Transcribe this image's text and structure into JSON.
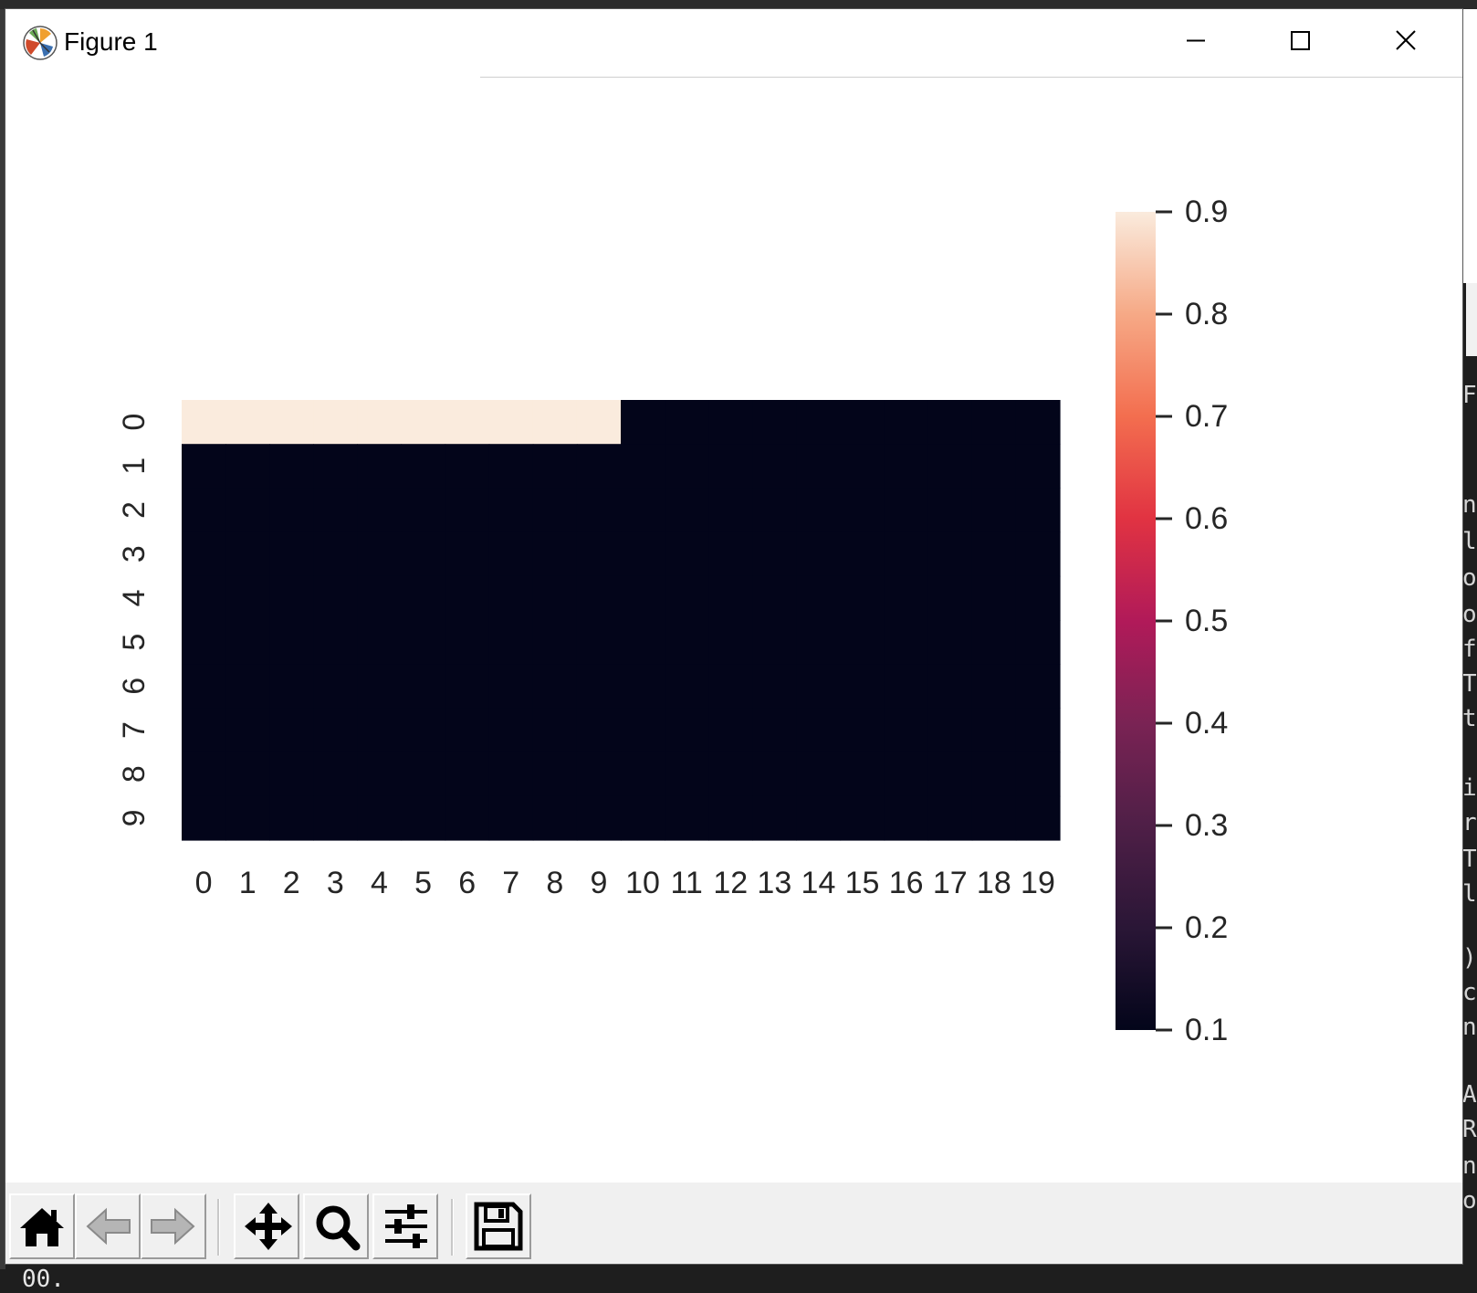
{
  "window": {
    "title": "Figure 1",
    "icon": "matplotlib-logo-icon",
    "controls": {
      "minimize_icon": "minimize-icon",
      "maximize_icon": "maximize-icon",
      "close_icon": "close-icon"
    }
  },
  "toolbar": {
    "buttons": [
      {
        "name": "home-button",
        "icon": "home-icon"
      },
      {
        "name": "back-button",
        "icon": "arrow-left-icon"
      },
      {
        "name": "forward-button",
        "icon": "arrow-right-icon"
      },
      {
        "name": "pan-button",
        "icon": "move-arrows-icon"
      },
      {
        "name": "zoom-button",
        "icon": "magnifier-icon"
      },
      {
        "name": "configure-subplots-button",
        "icon": "sliders-icon"
      },
      {
        "name": "save-button",
        "icon": "floppy-disk-icon"
      }
    ]
  },
  "terminal": {
    "visible_text": "00."
  },
  "background_text_fragments": [
    "F",
    "n",
    "l",
    "o",
    "o",
    "f",
    "T",
    "t",
    "i",
    "r",
    "T",
    "l",
    ")",
    "c",
    "n",
    "A",
    "R",
    "n",
    "o"
  ],
  "colors": {
    "high": "#faebdd",
    "low": "#03051a"
  },
  "chart_data": {
    "type": "heatmap",
    "title": "",
    "xlabel": "",
    "ylabel": "",
    "x_categories": [
      "0",
      "1",
      "2",
      "3",
      "4",
      "5",
      "6",
      "7",
      "8",
      "9",
      "10",
      "11",
      "12",
      "13",
      "14",
      "15",
      "16",
      "17",
      "18",
      "19"
    ],
    "y_categories": [
      "0",
      "1",
      "2",
      "3",
      "4",
      "5",
      "6",
      "7",
      "8",
      "9"
    ],
    "values": [
      [
        1,
        1,
        1,
        1,
        1,
        1,
        1,
        1,
        1,
        1,
        0,
        0,
        0,
        0,
        0,
        0,
        0,
        0,
        0,
        0
      ],
      [
        0,
        0,
        0,
        0,
        0,
        0,
        0,
        0,
        0,
        0,
        0,
        0,
        0,
        0,
        0,
        0,
        0,
        0,
        0,
        0
      ],
      [
        0,
        0,
        0,
        0,
        0,
        0,
        0,
        0,
        0,
        0,
        0,
        0,
        0,
        0,
        0,
        0,
        0,
        0,
        0,
        0
      ],
      [
        0,
        0,
        0,
        0,
        0,
        0,
        0,
        0,
        0,
        0,
        0,
        0,
        0,
        0,
        0,
        0,
        0,
        0,
        0,
        0
      ],
      [
        0,
        0,
        0,
        0,
        0,
        0,
        0,
        0,
        0,
        0,
        0,
        0,
        0,
        0,
        0,
        0,
        0,
        0,
        0,
        0
      ],
      [
        0,
        0,
        0,
        0,
        0,
        0,
        0,
        0,
        0,
        0,
        0,
        0,
        0,
        0,
        0,
        0,
        0,
        0,
        0,
        0
      ],
      [
        0,
        0,
        0,
        0,
        0,
        0,
        0,
        0,
        0,
        0,
        0,
        0,
        0,
        0,
        0,
        0,
        0,
        0,
        0,
        0
      ],
      [
        0,
        0,
        0,
        0,
        0,
        0,
        0,
        0,
        0,
        0,
        0,
        0,
        0,
        0,
        0,
        0,
        0,
        0,
        0,
        0
      ],
      [
        0,
        0,
        0,
        0,
        0,
        0,
        0,
        0,
        0,
        0,
        0,
        0,
        0,
        0,
        0,
        0,
        0,
        0,
        0,
        0
      ],
      [
        0,
        0,
        0,
        0,
        0,
        0,
        0,
        0,
        0,
        0,
        0,
        0,
        0,
        0,
        0,
        0,
        0,
        0,
        0,
        0
      ]
    ],
    "colorbar": {
      "ticks": [
        "0.1",
        "0.2",
        "0.3",
        "0.4",
        "0.5",
        "0.6",
        "0.7",
        "0.8",
        "0.9"
      ],
      "tick_values": [
        0.1,
        0.2,
        0.3,
        0.4,
        0.5,
        0.6,
        0.7,
        0.8,
        0.9
      ],
      "range": [
        0.1,
        0.9
      ],
      "colormap": "rocket"
    },
    "grid": false,
    "legend": "none"
  }
}
